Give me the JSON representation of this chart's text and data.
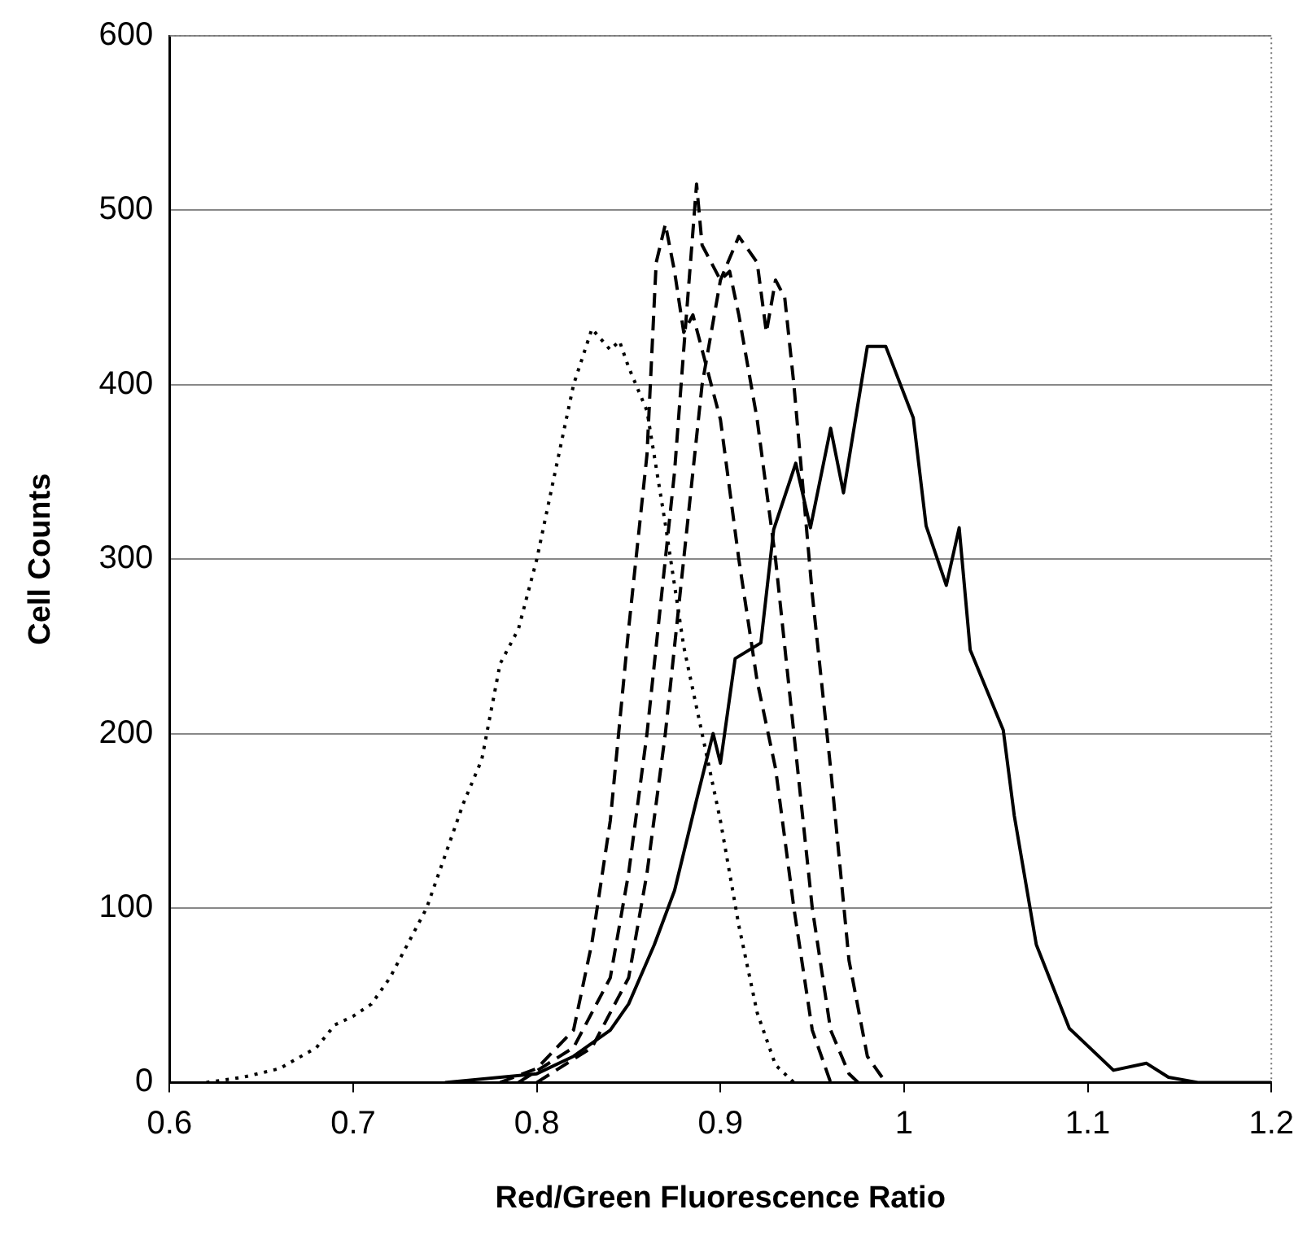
{
  "chart_data": {
    "type": "line",
    "xlabel": "Red/Green Fluorescence Ratio",
    "ylabel": "Cell Counts",
    "xlim": [
      0.6,
      1.2
    ],
    "xticks": [
      0.6,
      0.7,
      0.8,
      0.9,
      1,
      1.1,
      1.2
    ],
    "ylim": [
      0,
      600
    ],
    "yticks": [
      0,
      100,
      200,
      300,
      400,
      500,
      600
    ],
    "grid": "y",
    "legend": false,
    "marker": "none",
    "series": [
      {
        "color": "#000000",
        "line_style": "dotted",
        "x": [
          0.62,
          0.64,
          0.66,
          0.68,
          0.69,
          0.7,
          0.71,
          0.72,
          0.73,
          0.74,
          0.75,
          0.76,
          0.77,
          0.78,
          0.79,
          0.8,
          0.81,
          0.82,
          0.83,
          0.84,
          0.845,
          0.85,
          0.86,
          0.87,
          0.88,
          0.89,
          0.9,
          0.91,
          0.92,
          0.93,
          0.94
        ],
        "values": [
          0,
          3,
          8,
          20,
          33,
          38,
          45,
          60,
          80,
          100,
          130,
          160,
          185,
          240,
          260,
          300,
          350,
          400,
          432,
          420,
          425,
          410,
          385,
          320,
          250,
          200,
          150,
          90,
          40,
          10,
          0
        ]
      },
      {
        "color": "#000000",
        "line_style": "dashed",
        "x": [
          0.78,
          0.8,
          0.82,
          0.83,
          0.84,
          0.85,
          0.86,
          0.865,
          0.87,
          0.875,
          0.88,
          0.885,
          0.89,
          0.9,
          0.91,
          0.92,
          0.93,
          0.94,
          0.95,
          0.96
        ],
        "values": [
          0,
          8,
          30,
          80,
          150,
          260,
          360,
          470,
          492,
          465,
          430,
          440,
          420,
          380,
          300,
          230,
          180,
          100,
          30,
          0
        ]
      },
      {
        "color": "#000000",
        "line_style": "dashed",
        "x": [
          0.79,
          0.82,
          0.84,
          0.85,
          0.86,
          0.87,
          0.875,
          0.88,
          0.887,
          0.89,
          0.9,
          0.905,
          0.91,
          0.92,
          0.93,
          0.94,
          0.95,
          0.96,
          0.97,
          0.975
        ],
        "values": [
          0,
          20,
          60,
          120,
          200,
          300,
          350,
          420,
          515,
          480,
          460,
          465,
          440,
          380,
          300,
          200,
          100,
          30,
          5,
          0
        ]
      },
      {
        "color": "#000000",
        "line_style": "dashed",
        "x": [
          0.8,
          0.83,
          0.85,
          0.86,
          0.87,
          0.88,
          0.89,
          0.9,
          0.91,
          0.92,
          0.925,
          0.93,
          0.935,
          0.94,
          0.95,
          0.96,
          0.97,
          0.98,
          0.99
        ],
        "values": [
          0,
          20,
          60,
          120,
          200,
          300,
          400,
          460,
          485,
          470,
          430,
          460,
          450,
          400,
          280,
          180,
          70,
          15,
          0
        ]
      },
      {
        "color": "#000000",
        "line_style": "solid",
        "x": [
          0.75,
          0.8,
          0.82,
          0.84,
          0.85,
          0.864,
          0.875,
          0.887,
          0.896,
          0.9,
          0.908,
          0.922,
          0.929,
          0.941,
          0.949,
          0.96,
          0.967,
          0.98,
          0.99,
          1.005,
          1.012,
          1.023,
          1.03,
          1.036,
          1.054,
          1.06,
          1.072,
          1.09,
          1.114,
          1.132,
          1.144,
          1.16,
          1.2
        ],
        "values": [
          0,
          5,
          15,
          30,
          45,
          79,
          110,
          162,
          200,
          183,
          243,
          252,
          317,
          355,
          318,
          375,
          338,
          422,
          422,
          381,
          319,
          285,
          318,
          248,
          202,
          153,
          79,
          31,
          7,
          11,
          3,
          0,
          0
        ]
      }
    ]
  }
}
